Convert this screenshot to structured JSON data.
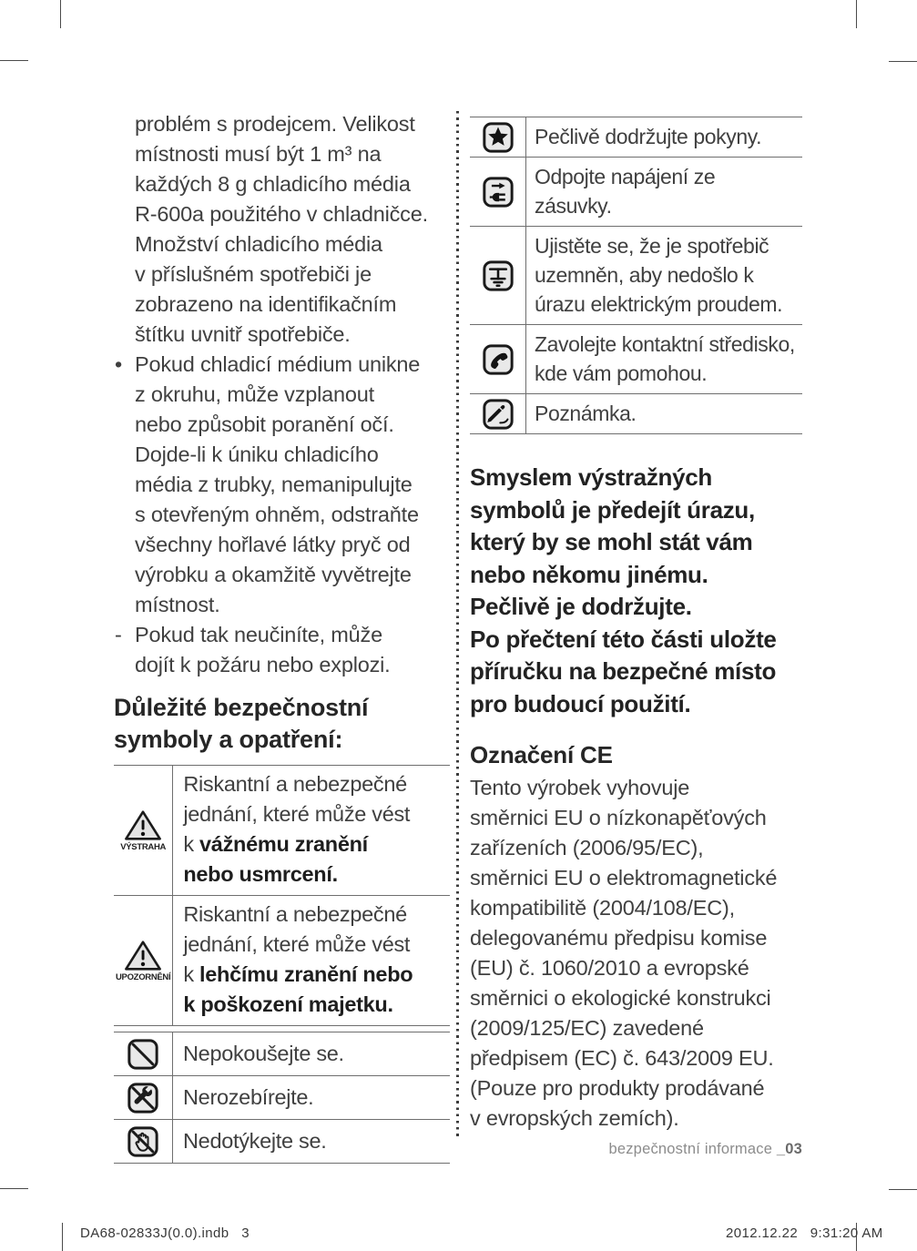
{
  "colors": {
    "text_primary": "#404040",
    "text_bold": "#1e1e1e",
    "table_border": "#6e6e6e",
    "icon_fill": "#e9e9e9",
    "footer_gray": "#8c8c8c"
  },
  "left_column": {
    "intro_lines": [
      "problém s prodejcem. Velikost",
      "místnosti musí být 1 m³ na",
      "každých 8 g chladicího média",
      "R-600a použitého v chladničce.",
      "Množství chladicího média",
      "v příslušném spotřebiči je",
      "zobrazeno na identifikačním",
      "štítku uvnitř spotřebiče."
    ],
    "items": [
      {
        "marker": "•",
        "lines": [
          "Pokud chladicí médium unikne",
          "z okruhu, může vzplanout",
          "nebo způsobit poranění očí.",
          "Dojde-li k úniku chladicího",
          "média z trubky, nemanipulujte",
          "s otevřeným ohněm, odstraňte",
          "všechny hořlavé látky pryč od",
          "výrobku a okamžitě vyvětrejte",
          "místnost."
        ]
      },
      {
        "marker": "-",
        "lines": [
          "Pokud tak neučiníte, může",
          "dojít k požáru nebo explozi."
        ]
      }
    ],
    "heading_lines": [
      "Důležité bezpečnostní",
      "symboly a opatření:"
    ],
    "symbols_table": {
      "rows": [
        {
          "icon": "warning-triangle-icon",
          "icon_label": "VÝSTRAHA",
          "lines": [
            [
              {
                "t": "Riskantní a nebezpečné"
              }
            ],
            [
              {
                "t": "jednání, které může vést"
              }
            ],
            [
              {
                "t": "k "
              },
              {
                "t": "vážnému zranění",
                "b": true
              }
            ],
            [
              {
                "t": "nebo usmrcení.",
                "b": true
              }
            ]
          ]
        },
        {
          "icon": "caution-triangle-icon",
          "icon_label": "UPOZORNĚNÍ",
          "lines": [
            [
              {
                "t": "Riskantní a nebezpečné"
              }
            ],
            [
              {
                "t": "jednání, které může vést"
              }
            ],
            [
              {
                "t": "k "
              },
              {
                "t": "lehčímu zranění nebo",
                "b": true
              }
            ],
            [
              {
                "t": "k poškození majetku.",
                "b": true
              }
            ]
          ]
        }
      ]
    },
    "actions_table": {
      "rows": [
        {
          "icon": "do-not-attempt-icon",
          "lines": [
            [
              {
                "t": "Nepokoušejte se."
              }
            ]
          ]
        },
        {
          "icon": "do-not-disassemble-icon",
          "lines": [
            [
              {
                "t": "Nerozebírejte."
              }
            ]
          ]
        },
        {
          "icon": "do-not-touch-icon",
          "lines": [
            [
              {
                "t": "Nedotýkejte se."
              }
            ]
          ]
        }
      ]
    }
  },
  "right_column": {
    "instructions_table": {
      "rows": [
        {
          "icon": "follow-instructions-star-icon",
          "lines": [
            [
              {
                "t": "Pečlivě dodržujte pokyny."
              }
            ]
          ]
        },
        {
          "icon": "unplug-power-icon",
          "lines": [
            [
              {
                "t": "Odpojte napájení ze"
              }
            ],
            [
              {
                "t": "zásuvky."
              }
            ]
          ]
        },
        {
          "icon": "ground-earth-icon",
          "lines": [
            [
              {
                "t": "Ujistěte se, že je spotřebič"
              }
            ],
            [
              {
                "t": "uzemněn, aby nedošlo k"
              }
            ],
            [
              {
                "t": "úrazu elektrickým proudem."
              }
            ]
          ]
        },
        {
          "icon": "call-center-phone-icon",
          "lines": [
            [
              {
                "t": "Zavolejte kontaktní středisko,"
              }
            ],
            [
              {
                "t": "kde vám pomohou."
              }
            ]
          ]
        },
        {
          "icon": "note-pencil-icon",
          "lines": [
            [
              {
                "t": "Poznámka."
              }
            ]
          ]
        }
      ]
    },
    "warning_note_lines": [
      "Smyslem výstražných",
      "symbolů je předejít úrazu,",
      "který by se mohl stát vám",
      "nebo někomu jinému.",
      "Pečlivě je dodržujte.",
      "Po přečtení této části uložte",
      "příručku na bezpečné místo",
      "pro budoucí použití."
    ],
    "ce": {
      "heading": "Označení CE",
      "body_lines": [
        "Tento výrobek vyhovuje",
        "směrnici EU o nízkonapěťových",
        "zařízeních (2006/95/EC),",
        "směrnici EU o elektromagnetické",
        "kompatibilitě (2004/108/EC),",
        "delegovanému předpisu komise",
        "(EU) č. 1060/2010 a evropské",
        "směrnici o ekologické konstrukci",
        "(2009/125/EC) zavedené",
        "předpisem (EC) č. 643/2009 EU.",
        "(Pouze pro produkty prodávané",
        "v evropských zemích)."
      ]
    }
  },
  "footer": {
    "section_label": "bezpečnostní informace ",
    "page_number": "_03"
  },
  "print_footer": {
    "left": "DA68-02833J(0.0).indb   3",
    "right": "2012.12.22   9:31:20 AM"
  }
}
